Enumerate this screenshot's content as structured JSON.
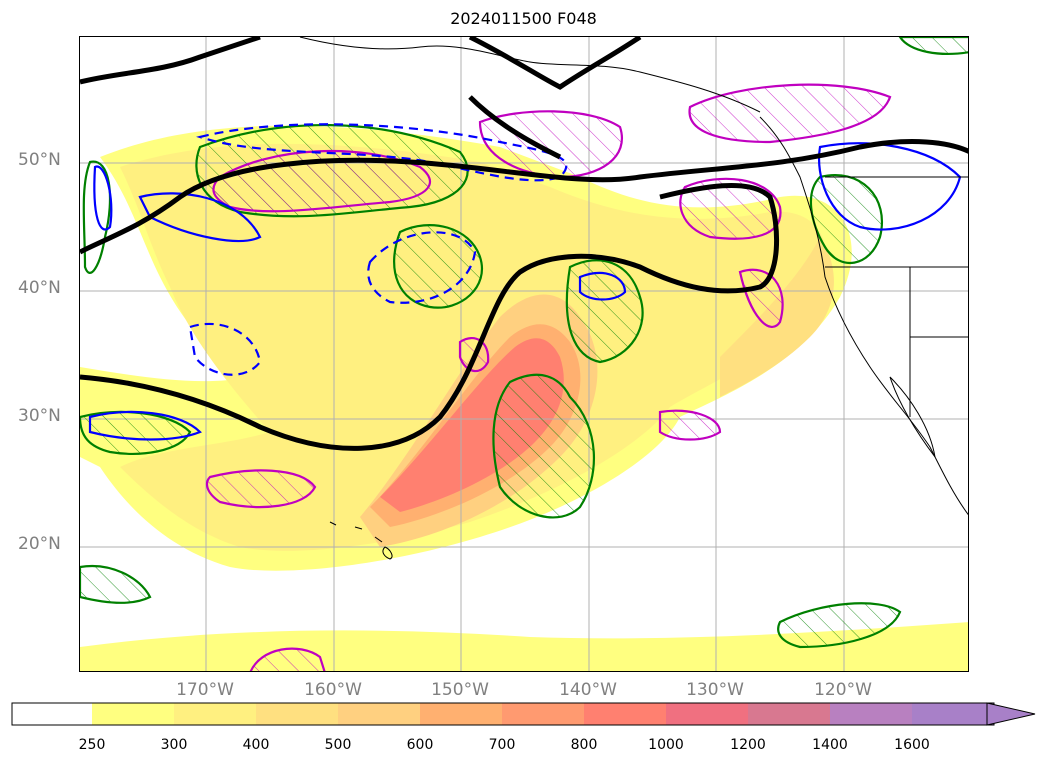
{
  "title": "2024011500 F048",
  "map": {
    "lat_labels": [
      "50°N",
      "40°N",
      "30°N",
      "20°N"
    ],
    "lon_labels": [
      "170°W",
      "160°W",
      "150°W",
      "140°W",
      "130°W",
      "120°W"
    ]
  },
  "colorbar": {
    "levels": [
      "250",
      "300",
      "400",
      "500",
      "600",
      "700",
      "800",
      "1000",
      "1200",
      "1400",
      "1600"
    ],
    "colors": [
      "#ffffff",
      "#ffff80",
      "#fff080",
      "#ffe080",
      "#ffd080",
      "#ffb070",
      "#ff9a70",
      "#ff8070",
      "#f07080",
      "#d87890",
      "#b880c0",
      "#a880c8"
    ],
    "extend": "max"
  },
  "contours": {
    "shading_color": "#ff8070",
    "thick_line_color": "#000000",
    "green_color": "#008000",
    "magenta_color": "#c000c0",
    "blue_color": "#0000ff"
  }
}
